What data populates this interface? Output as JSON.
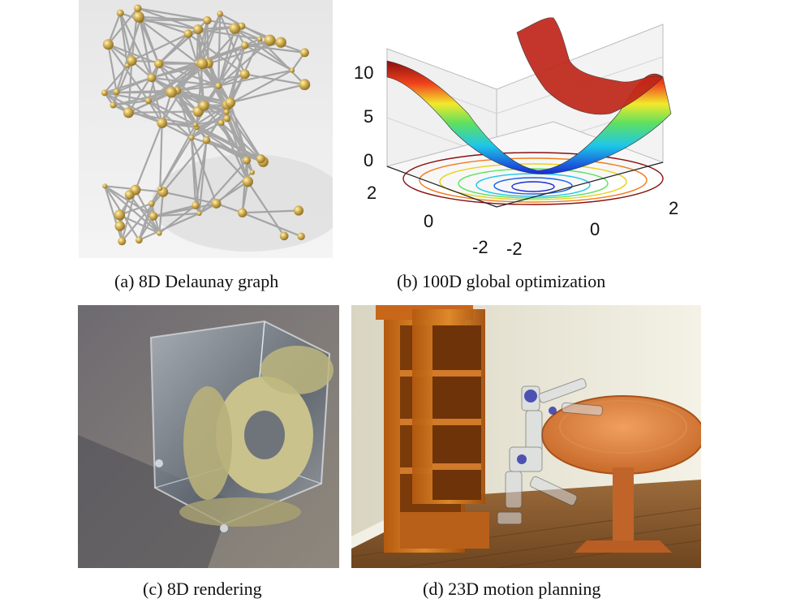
{
  "figure": {
    "panels": [
      {
        "id": "a",
        "caption": "(a) 8D Delaunay graph",
        "icon": "delaunay-graph-render"
      },
      {
        "id": "b",
        "caption": "(b) 100D global optimization",
        "icon": "surface-plot-render"
      },
      {
        "id": "c",
        "caption": "(c) 8D rendering",
        "icon": "glass-cube-torus-render"
      },
      {
        "id": "d",
        "caption": "(d) 23D motion planning",
        "icon": "robot-motion-planning-render"
      }
    ]
  },
  "chart_data": {
    "type": "surface",
    "z_ticks": [
      "10",
      "5",
      "0"
    ],
    "x_ticks": [
      "2",
      "0",
      "-2"
    ],
    "y_ticks": [
      "-2",
      "0",
      "2"
    ],
    "zlim": [
      0,
      12
    ],
    "xlim": [
      -2,
      2
    ],
    "ylim": [
      -2,
      2
    ],
    "colormap": "jet"
  }
}
